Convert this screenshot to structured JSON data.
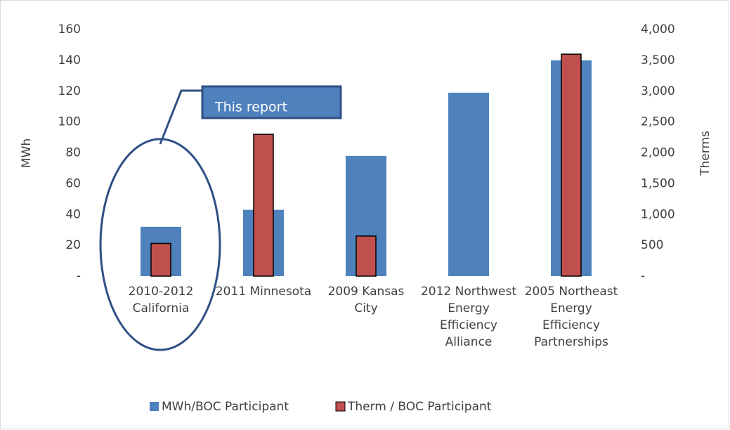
{
  "chart_data": {
    "type": "bar",
    "categories": [
      "2010-2012 California",
      "2011 Minnesota",
      "2009 Kansas City",
      "2012 Northwest Energy Efficiency Alliance",
      "2005 Northeast Energy Efficiency Partnerships"
    ],
    "series": [
      {
        "name": "MWh/BOC Participant",
        "color": "#4f81bd",
        "values": [
          32,
          43,
          78,
          119,
          140
        ]
      },
      {
        "name": "Therm / BOC Participant",
        "color": "#c0504d",
        "axis": "y2",
        "values": [
          530,
          2300,
          650,
          null,
          3600
        ]
      }
    ],
    "ylabel": "MWh",
    "y2label": "Therms",
    "ylim": [
      0,
      160
    ],
    "yticks": [
      {
        "value": 0,
        "label": "-"
      },
      20,
      40,
      60,
      80,
      100,
      120,
      140,
      160
    ],
    "y2lim": [
      0,
      4000
    ],
    "y2ticks": [
      {
        "value": 0,
        "label": "-"
      },
      500,
      {
        "value": 1000,
        "label": "1,000"
      },
      {
        "value": 1500,
        "label": "1,500"
      },
      {
        "value": 2000,
        "label": "2,000"
      },
      {
        "value": 2500,
        "label": "2,500"
      },
      {
        "value": 3000,
        "label": "3,000"
      },
      {
        "value": 3500,
        "label": "3,500"
      },
      {
        "value": 4000,
        "label": "4,000"
      }
    ],
    "grid": false,
    "legend": "bottom",
    "annotation": "This report"
  }
}
